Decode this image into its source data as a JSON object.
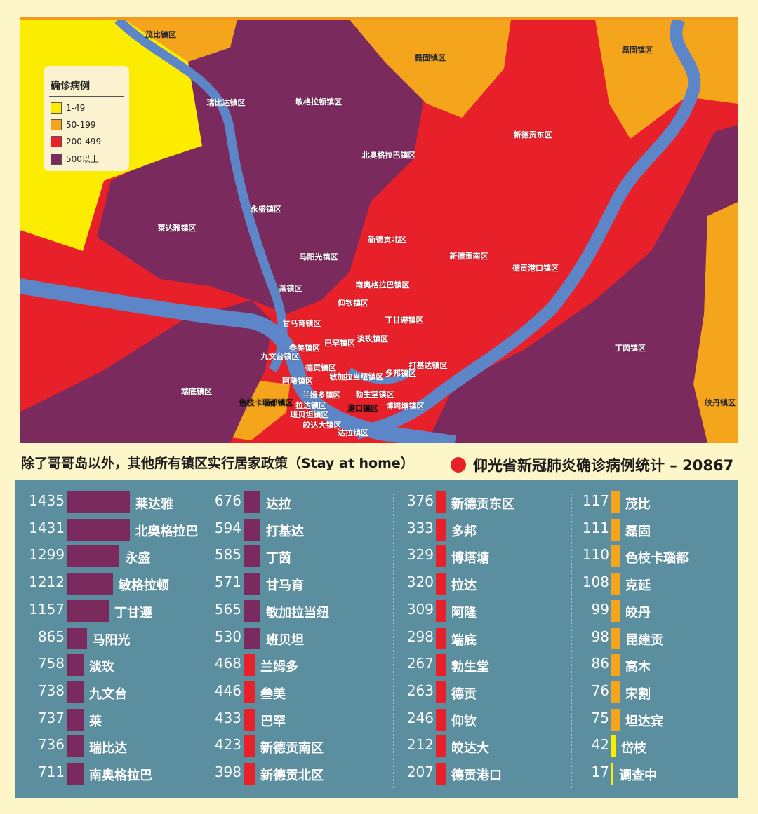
{
  "colors": {
    "yellow": "#fcec00",
    "orange": "#f5a51c",
    "red": "#e8202a",
    "purple": "#7b2a5e",
    "river": "#5c86c8",
    "panel": "#5b8e9e"
  },
  "legend": {
    "title": "确诊病例",
    "items": [
      {
        "label": "1-49",
        "color": "#fcec00"
      },
      {
        "label": "50-199",
        "color": "#f5a51c"
      },
      {
        "label": "200-499",
        "color": "#e8202a"
      },
      {
        "label": "500以上",
        "color": "#7b2a5e"
      }
    ]
  },
  "map_labels": [
    {
      "text": "茂比镇区",
      "icon": "district"
    },
    {
      "text": "磊固镇区"
    },
    {
      "text": "磊固镇区"
    },
    {
      "text": "瑞比达镇区"
    },
    {
      "text": "敏格拉顿镇区"
    },
    {
      "text": "新德贡东区"
    },
    {
      "text": "北奥格拉巴镇区"
    },
    {
      "text": "永盛镇区"
    },
    {
      "text": "莱达雅镇区"
    },
    {
      "text": "新德贡北区"
    },
    {
      "text": "马阳光镇区"
    },
    {
      "text": "新德贡南区"
    },
    {
      "text": "德贡港口镇区"
    },
    {
      "text": "莱镇区"
    },
    {
      "text": "南奥格拉巴镇区"
    },
    {
      "text": "仰钦镇区"
    },
    {
      "text": "丁甘遵镇区"
    },
    {
      "text": "甘马育镇区"
    },
    {
      "text": "淡玫镇区"
    },
    {
      "text": "巴罕镇区"
    },
    {
      "text": "叁美镇区"
    },
    {
      "text": "九文台镇区"
    },
    {
      "text": "丁茵镇区"
    },
    {
      "text": "打基达镇区"
    },
    {
      "text": "德贡镇区"
    },
    {
      "text": "敏加拉当纽镇区"
    },
    {
      "text": "多邦镇区"
    },
    {
      "text": "阿隆镇区"
    },
    {
      "text": "端底镇区"
    },
    {
      "text": "兰姆多镇区"
    },
    {
      "text": "勃生堂镇区"
    },
    {
      "text": "色枝卡瑙都镇区"
    },
    {
      "text": "拉达镇区"
    },
    {
      "text": "港口镇区"
    },
    {
      "text": "博塔塘镇区"
    },
    {
      "text": "班贝坦镇区"
    },
    {
      "text": "皎达大镇区"
    },
    {
      "text": "达拉镇区"
    },
    {
      "text": "皎丹镇区"
    }
  ],
  "caption": "除了哥哥岛以外，其他所有镇区实行居家政策（Stay at home）",
  "stat": "仰光省新冠肺炎确诊病例统计 – 20867",
  "columns": [
    [
      {
        "count": "1435",
        "name": "莱达雅",
        "value": 1435
      },
      {
        "count": "1431",
        "name": "北奥格拉巴",
        "value": 1431
      },
      {
        "count": "1299",
        "name": "永盛",
        "value": 1299
      },
      {
        "count": "1212",
        "name": "敏格拉顿",
        "value": 1212
      },
      {
        "count": "1157",
        "name": "丁甘遵",
        "value": 1157
      },
      {
        "count": "865",
        "name": "马阳光",
        "value": 865
      },
      {
        "count": "758",
        "name": "淡玫",
        "value": 758
      },
      {
        "count": "738",
        "name": "九文台",
        "value": 738
      },
      {
        "count": "737",
        "name": "莱",
        "value": 737
      },
      {
        "count": "736",
        "name": "瑞比达",
        "value": 736
      },
      {
        "count": "711",
        "name": "南奥格拉巴",
        "value": 711
      }
    ],
    [
      {
        "count": "676",
        "name": "达拉",
        "value": 676
      },
      {
        "count": "594",
        "name": "打基达",
        "value": 594
      },
      {
        "count": "585",
        "name": "丁茵",
        "value": 585
      },
      {
        "count": "571",
        "name": "甘马育",
        "value": 571
      },
      {
        "count": "565",
        "name": "敏加拉当纽",
        "value": 565
      },
      {
        "count": "530",
        "name": "班贝坦",
        "value": 530
      },
      {
        "count": "468",
        "name": "兰姆多",
        "value": 468
      },
      {
        "count": "446",
        "name": "叁美",
        "value": 446
      },
      {
        "count": "433",
        "name": "巴罕",
        "value": 433
      },
      {
        "count": "423",
        "name": "新德贡南区",
        "value": 423
      },
      {
        "count": "398",
        "name": "新德贡北区",
        "value": 398
      }
    ],
    [
      {
        "count": "376",
        "name": "新德贡东区",
        "value": 376
      },
      {
        "count": "333",
        "name": "多邦",
        "value": 333
      },
      {
        "count": "329",
        "name": "博塔塘",
        "value": 329
      },
      {
        "count": "320",
        "name": "拉达",
        "value": 320
      },
      {
        "count": "309",
        "name": "阿隆",
        "value": 309
      },
      {
        "count": "298",
        "name": "端底",
        "value": 298
      },
      {
        "count": "267",
        "name": "勃生堂",
        "value": 267
      },
      {
        "count": "263",
        "name": "德贡",
        "value": 263
      },
      {
        "count": "246",
        "name": "仰钦",
        "value": 246
      },
      {
        "count": "212",
        "name": "皎达大",
        "value": 212
      },
      {
        "count": "207",
        "name": "德贡港口",
        "value": 207
      }
    ],
    [
      {
        "count": "117",
        "name": "茂比",
        "value": 117
      },
      {
        "count": "111",
        "name": "磊固",
        "value": 111
      },
      {
        "count": "110",
        "name": "色枝卡瑙都",
        "value": 110
      },
      {
        "count": "108",
        "name": "克延",
        "value": 108
      },
      {
        "count": "99",
        "name": "皎丹",
        "value": 99
      },
      {
        "count": "98",
        "name": "昆建贡",
        "value": 98
      },
      {
        "count": "86",
        "name": "高木",
        "value": 86
      },
      {
        "count": "76",
        "name": "宋割",
        "value": 76
      },
      {
        "count": "75",
        "name": "坦达宾",
        "value": 75
      },
      {
        "count": "42",
        "name": "岱枝",
        "value": 42
      },
      {
        "count": "17",
        "name": "调查中",
        "value": 17
      }
    ]
  ]
}
